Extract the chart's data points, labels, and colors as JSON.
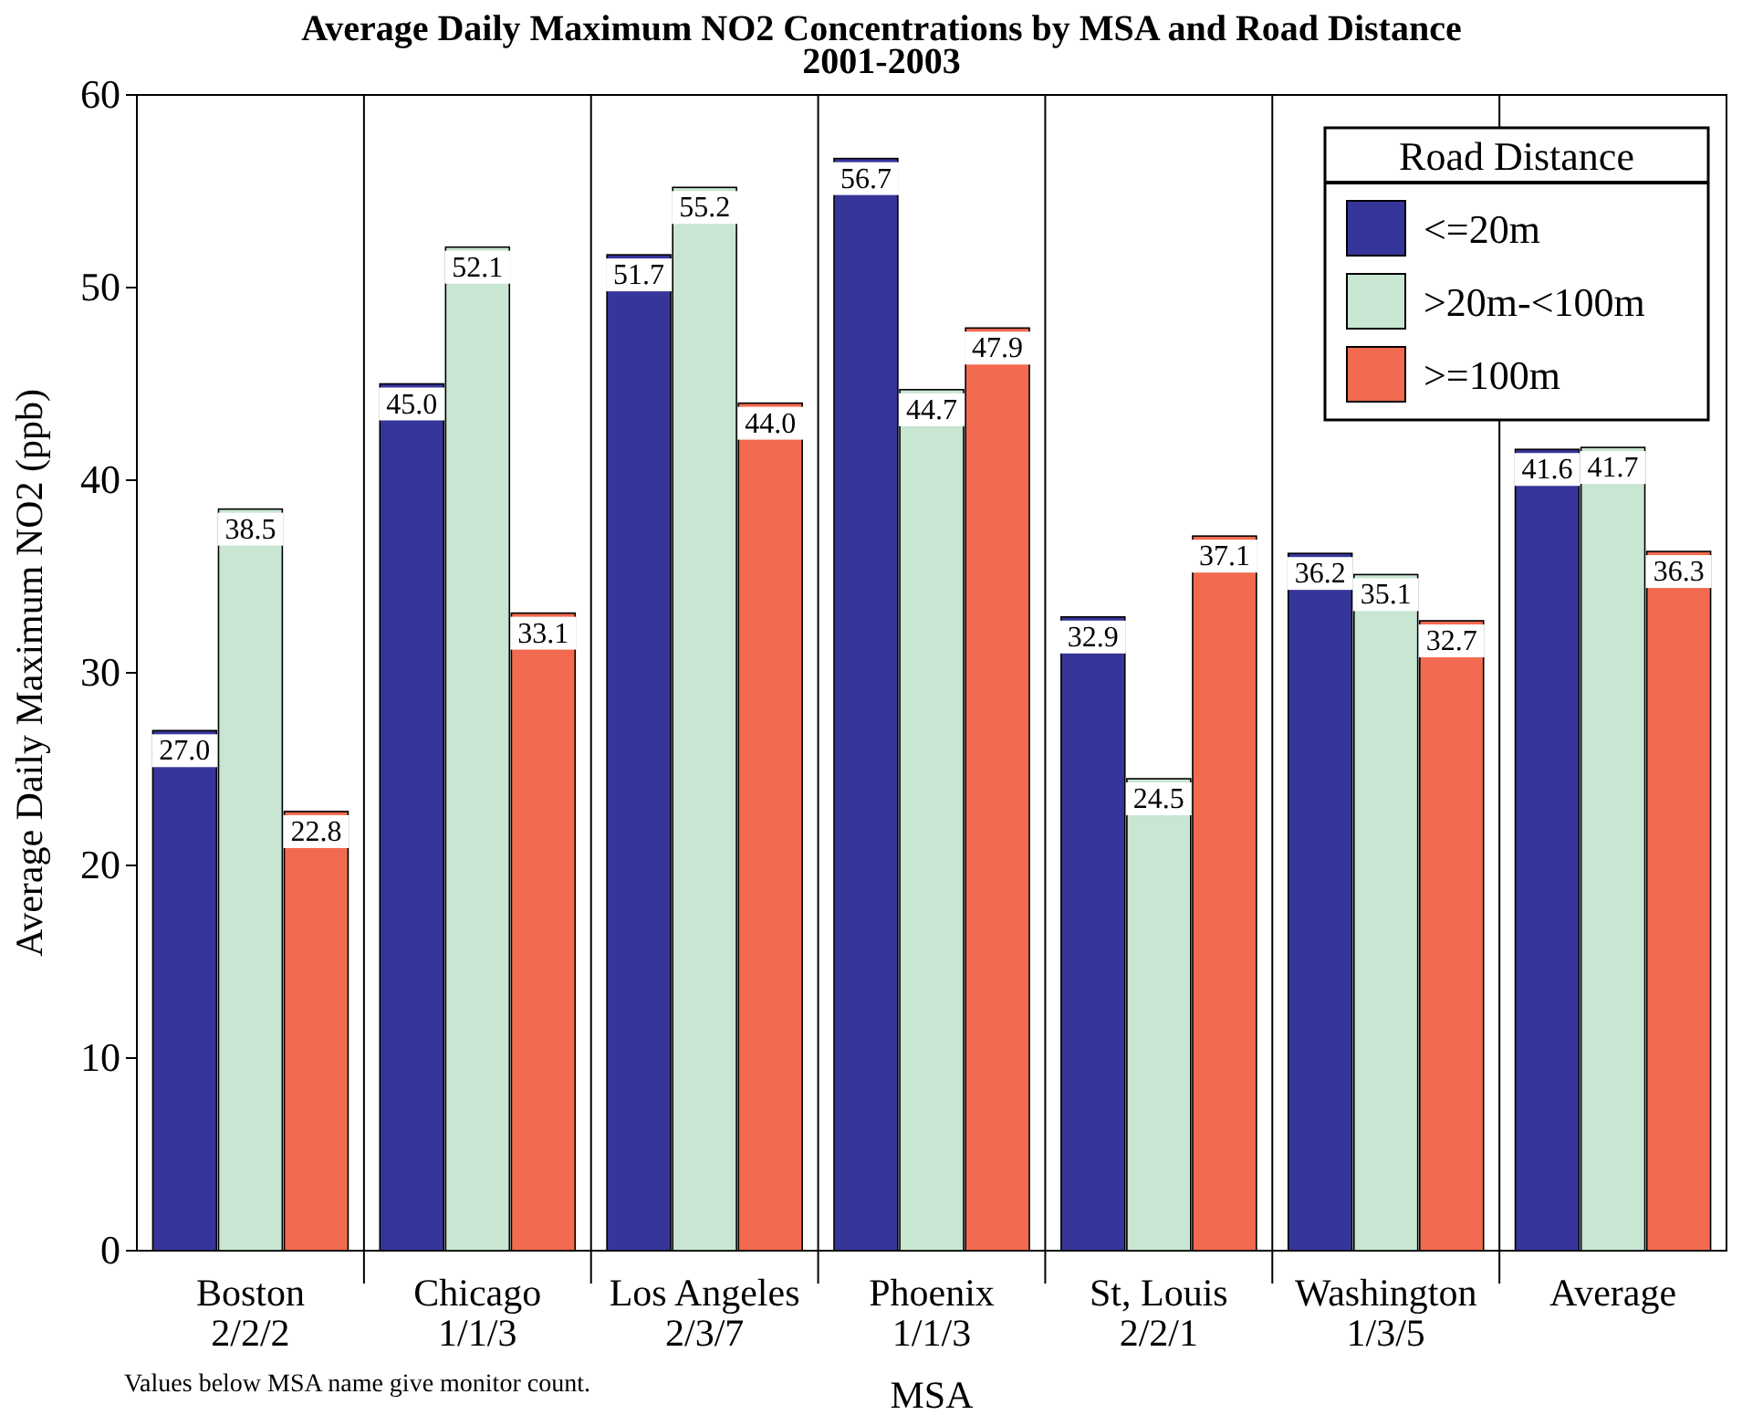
{
  "chart_data": {
    "type": "bar",
    "title": "Average Daily Maximum NO2 Concentrations by MSA and Road Distance\n2001-2003",
    "xlabel": "MSA",
    "ylabel": "Average Daily Maximum NO2 (ppb)",
    "legend_title": "Road Distance",
    "categories": [
      "Boston\n2/2/2",
      "Chicago\n1/1/3",
      "Los Angeles\n2/3/7",
      "Phoenix\n1/1/3",
      "St, Louis\n2/2/1",
      "Washington\n1/3/5",
      "Average"
    ],
    "series": [
      {
        "name": "<=20m",
        "color": "#35359a",
        "values": [
          27.0,
          45.0,
          51.7,
          56.7,
          32.9,
          36.2,
          41.6
        ],
        "value_labels": [
          "27.0",
          "45.0",
          "51.7",
          "56.7",
          "32.9",
          "36.2",
          "41.6"
        ]
      },
      {
        "name": ">20m-<100m",
        "color": "#c8e6d2",
        "values": [
          38.5,
          52.1,
          55.2,
          44.7,
          24.5,
          35.1,
          41.7
        ],
        "value_labels": [
          "38.5",
          "52.1",
          "55.2",
          "44.7",
          "24.5",
          "35.1",
          "41.7"
        ]
      },
      {
        "name": ">=100m",
        "color": "#f26a4f",
        "values": [
          22.8,
          33.1,
          44.0,
          47.9,
          37.1,
          32.7,
          36.3
        ],
        "value_labels": [
          "22.8",
          "33.1",
          "44.0",
          "47.9",
          "37.1",
          "32.7",
          "36.3"
        ]
      }
    ],
    "ylim": [
      0,
      60
    ],
    "yticks": [
      0,
      10,
      20,
      30,
      40,
      50,
      60
    ],
    "grid": "x",
    "legend": "top right",
    "annotations": [
      "Values below MSA name give monitor count."
    ]
  }
}
